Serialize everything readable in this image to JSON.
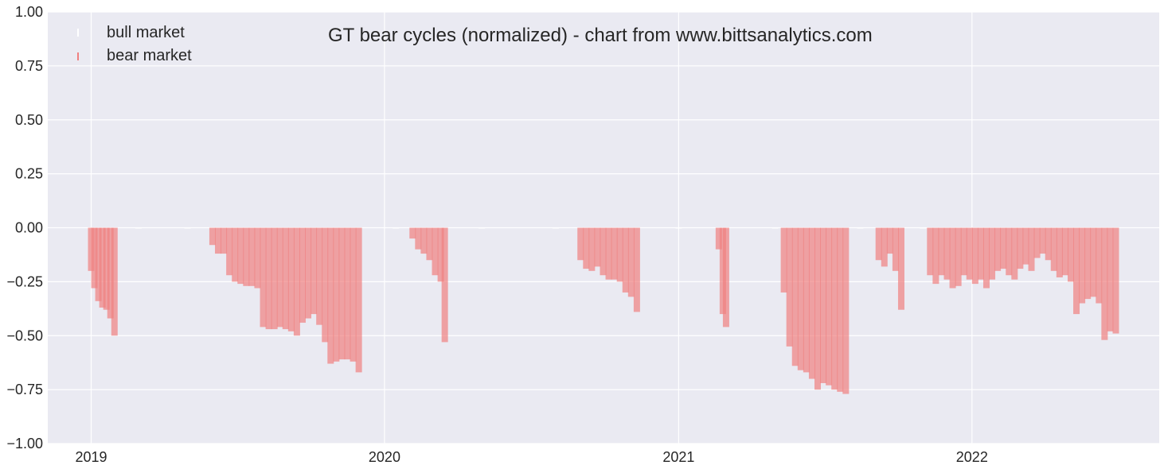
{
  "chart_data": {
    "type": "bar",
    "title": "GT bear cycles (normalized)  - chart from www.bittsanalytics.com",
    "xlabel": "",
    "ylabel": "",
    "ylim": [
      -1.0,
      1.0
    ],
    "xlim": [
      "2018-11-08",
      "2022-08-22"
    ],
    "yticks": [
      "1.00",
      "0.75",
      "0.50",
      "0.25",
      "0.00",
      "−0.25",
      "−0.50",
      "−0.75",
      "−1.00"
    ],
    "ytick_values": [
      1.0,
      0.75,
      0.5,
      0.25,
      0.0,
      -0.25,
      -0.5,
      -0.75,
      -1.0
    ],
    "xticks": [
      {
        "label": "2019",
        "date": "2019-01-01"
      },
      {
        "label": "2020",
        "date": "2020-01-01"
      },
      {
        "label": "2021",
        "date": "2021-01-01"
      },
      {
        "label": "2022",
        "date": "2022-01-01"
      }
    ],
    "grid": true,
    "legend_position": "top-left",
    "series": [
      {
        "name": "bull market",
        "color": "#ffffff",
        "points": [
          [
            "2019-01-01",
            0.0
          ],
          [
            "2019-03-01",
            0.0
          ],
          [
            "2019-05-01",
            0.0
          ],
          [
            "2020-01-15",
            0.0
          ],
          [
            "2020-05-01",
            0.0
          ],
          [
            "2020-08-01",
            0.0
          ],
          [
            "2021-01-01",
            0.0
          ],
          [
            "2021-03-01",
            0.0
          ],
          [
            "2021-05-01",
            0.0
          ],
          [
            "2021-08-15",
            0.0
          ],
          [
            "2021-10-01",
            0.0
          ],
          [
            "2021-11-01",
            0.0
          ]
        ]
      },
      {
        "name": "bear market",
        "color": "#f08080",
        "points": [
          [
            "2019-01-01",
            -0.2
          ],
          [
            "2019-01-05",
            -0.28
          ],
          [
            "2019-01-10",
            -0.34
          ],
          [
            "2019-01-15",
            -0.37
          ],
          [
            "2019-01-20",
            -0.38
          ],
          [
            "2019-01-25",
            -0.42
          ],
          [
            "2019-01-30",
            -0.5
          ],
          [
            "2019-06-01",
            -0.08
          ],
          [
            "2019-06-08",
            -0.12
          ],
          [
            "2019-06-15",
            -0.12
          ],
          [
            "2019-06-22",
            -0.22
          ],
          [
            "2019-06-29",
            -0.25
          ],
          [
            "2019-07-06",
            -0.26
          ],
          [
            "2019-07-13",
            -0.27
          ],
          [
            "2019-07-20",
            -0.27
          ],
          [
            "2019-07-27",
            -0.28
          ],
          [
            "2019-08-03",
            -0.46
          ],
          [
            "2019-08-10",
            -0.47
          ],
          [
            "2019-08-17",
            -0.47
          ],
          [
            "2019-08-24",
            -0.46
          ],
          [
            "2019-08-31",
            -0.47
          ],
          [
            "2019-09-07",
            -0.48
          ],
          [
            "2019-09-14",
            -0.5
          ],
          [
            "2019-09-21",
            -0.44
          ],
          [
            "2019-09-28",
            -0.42
          ],
          [
            "2019-10-05",
            -0.4
          ],
          [
            "2019-10-12",
            -0.45
          ],
          [
            "2019-10-19",
            -0.53
          ],
          [
            "2019-10-26",
            -0.63
          ],
          [
            "2019-11-02",
            -0.62
          ],
          [
            "2019-11-09",
            -0.61
          ],
          [
            "2019-11-16",
            -0.61
          ],
          [
            "2019-11-23",
            -0.62
          ],
          [
            "2019-11-30",
            -0.67
          ],
          [
            "2020-02-05",
            -0.05
          ],
          [
            "2020-02-12",
            -0.1
          ],
          [
            "2020-02-19",
            -0.12
          ],
          [
            "2020-02-26",
            -0.15
          ],
          [
            "2020-03-04",
            -0.22
          ],
          [
            "2020-03-11",
            -0.25
          ],
          [
            "2020-03-16",
            -0.53
          ],
          [
            "2020-09-01",
            -0.15
          ],
          [
            "2020-09-08",
            -0.19
          ],
          [
            "2020-09-15",
            -0.2
          ],
          [
            "2020-09-22",
            -0.18
          ],
          [
            "2020-09-29",
            -0.22
          ],
          [
            "2020-10-06",
            -0.24
          ],
          [
            "2020-10-13",
            -0.24
          ],
          [
            "2020-10-20",
            -0.25
          ],
          [
            "2020-10-27",
            -0.3
          ],
          [
            "2020-11-03",
            -0.32
          ],
          [
            "2020-11-10",
            -0.39
          ],
          [
            "2021-02-20",
            -0.1
          ],
          [
            "2021-02-25",
            -0.4
          ],
          [
            "2021-03-01",
            -0.46
          ],
          [
            "2021-05-12",
            -0.3
          ],
          [
            "2021-05-19",
            -0.55
          ],
          [
            "2021-05-26",
            -0.64
          ],
          [
            "2021-06-02",
            -0.66
          ],
          [
            "2021-06-09",
            -0.67
          ],
          [
            "2021-06-16",
            -0.7
          ],
          [
            "2021-06-23",
            -0.75
          ],
          [
            "2021-06-30",
            -0.72
          ],
          [
            "2021-07-07",
            -0.73
          ],
          [
            "2021-07-14",
            -0.75
          ],
          [
            "2021-07-21",
            -0.76
          ],
          [
            "2021-07-28",
            -0.77
          ],
          [
            "2021-09-07",
            -0.15
          ],
          [
            "2021-09-14",
            -0.18
          ],
          [
            "2021-09-21",
            -0.12
          ],
          [
            "2021-09-28",
            -0.2
          ],
          [
            "2021-10-05",
            -0.38
          ],
          [
            "2021-11-10",
            -0.22
          ],
          [
            "2021-11-17",
            -0.26
          ],
          [
            "2021-11-24",
            -0.22
          ],
          [
            "2021-12-01",
            -0.24
          ],
          [
            "2021-12-08",
            -0.28
          ],
          [
            "2021-12-15",
            -0.27
          ],
          [
            "2021-12-22",
            -0.22
          ],
          [
            "2021-12-29",
            -0.24
          ],
          [
            "2022-01-05",
            -0.26
          ],
          [
            "2022-01-12",
            -0.24
          ],
          [
            "2022-01-19",
            -0.28
          ],
          [
            "2022-01-26",
            -0.24
          ],
          [
            "2022-02-02",
            -0.2
          ],
          [
            "2022-02-09",
            -0.19
          ],
          [
            "2022-02-16",
            -0.22
          ],
          [
            "2022-02-23",
            -0.24
          ],
          [
            "2022-03-02",
            -0.19
          ],
          [
            "2022-03-09",
            -0.17
          ],
          [
            "2022-03-16",
            -0.2
          ],
          [
            "2022-03-23",
            -0.14
          ],
          [
            "2022-03-30",
            -0.12
          ],
          [
            "2022-04-06",
            -0.15
          ],
          [
            "2022-04-13",
            -0.2
          ],
          [
            "2022-04-20",
            -0.23
          ],
          [
            "2022-04-27",
            -0.22
          ],
          [
            "2022-05-04",
            -0.25
          ],
          [
            "2022-05-11",
            -0.4
          ],
          [
            "2022-05-18",
            -0.35
          ],
          [
            "2022-05-25",
            -0.33
          ],
          [
            "2022-06-01",
            -0.32
          ],
          [
            "2022-06-08",
            -0.35
          ],
          [
            "2022-06-15",
            -0.52
          ],
          [
            "2022-06-22",
            -0.48
          ],
          [
            "2022-06-29",
            -0.49
          ]
        ]
      }
    ],
    "colors": {
      "plot_background": "#eaeaf2",
      "grid": "#ffffff",
      "bear_bar": "#f08080",
      "text": "#262626"
    }
  }
}
